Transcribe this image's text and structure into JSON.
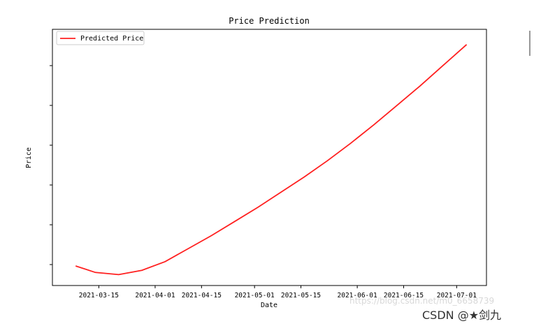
{
  "chart_data": {
    "type": "line",
    "title": "Price Prediction",
    "xlabel": "Date",
    "ylabel": "Price",
    "x_ticks": [
      "2021-03-15",
      "2021-04-01",
      "2021-04-15",
      "2021-05-01",
      "2021-05-15",
      "2021-06-01",
      "2021-06-15",
      "2021-07-01"
    ],
    "y_tick_labels_visible": false,
    "grid": false,
    "legend_position": "top-left",
    "series": [
      {
        "name": "Predicted Price",
        "color": "#ff2020",
        "x": [
          "2021-03-08",
          "2021-03-14",
          "2021-03-21",
          "2021-03-28",
          "2021-04-04",
          "2021-04-11",
          "2021-04-18",
          "2021-04-25",
          "2021-05-02",
          "2021-05-09",
          "2021-05-16",
          "2021-05-23",
          "2021-05-30",
          "2021-06-06",
          "2021-06-13",
          "2021-06-20",
          "2021-06-27",
          "2021-07-04"
        ],
        "y": [
          0.05,
          0.02,
          0.01,
          0.03,
          0.07,
          0.13,
          0.19,
          0.255,
          0.32,
          0.39,
          0.46,
          0.535,
          0.615,
          0.7,
          0.79,
          0.88,
          0.975,
          1.07
        ]
      }
    ],
    "x_range": [
      "2021-03-01",
      "2021-07-10"
    ],
    "y_range": [
      -0.04,
      1.14
    ]
  },
  "watermark": "https://blog.csdn.net/m0_6658739",
  "credit": "CSDN @★剑九"
}
